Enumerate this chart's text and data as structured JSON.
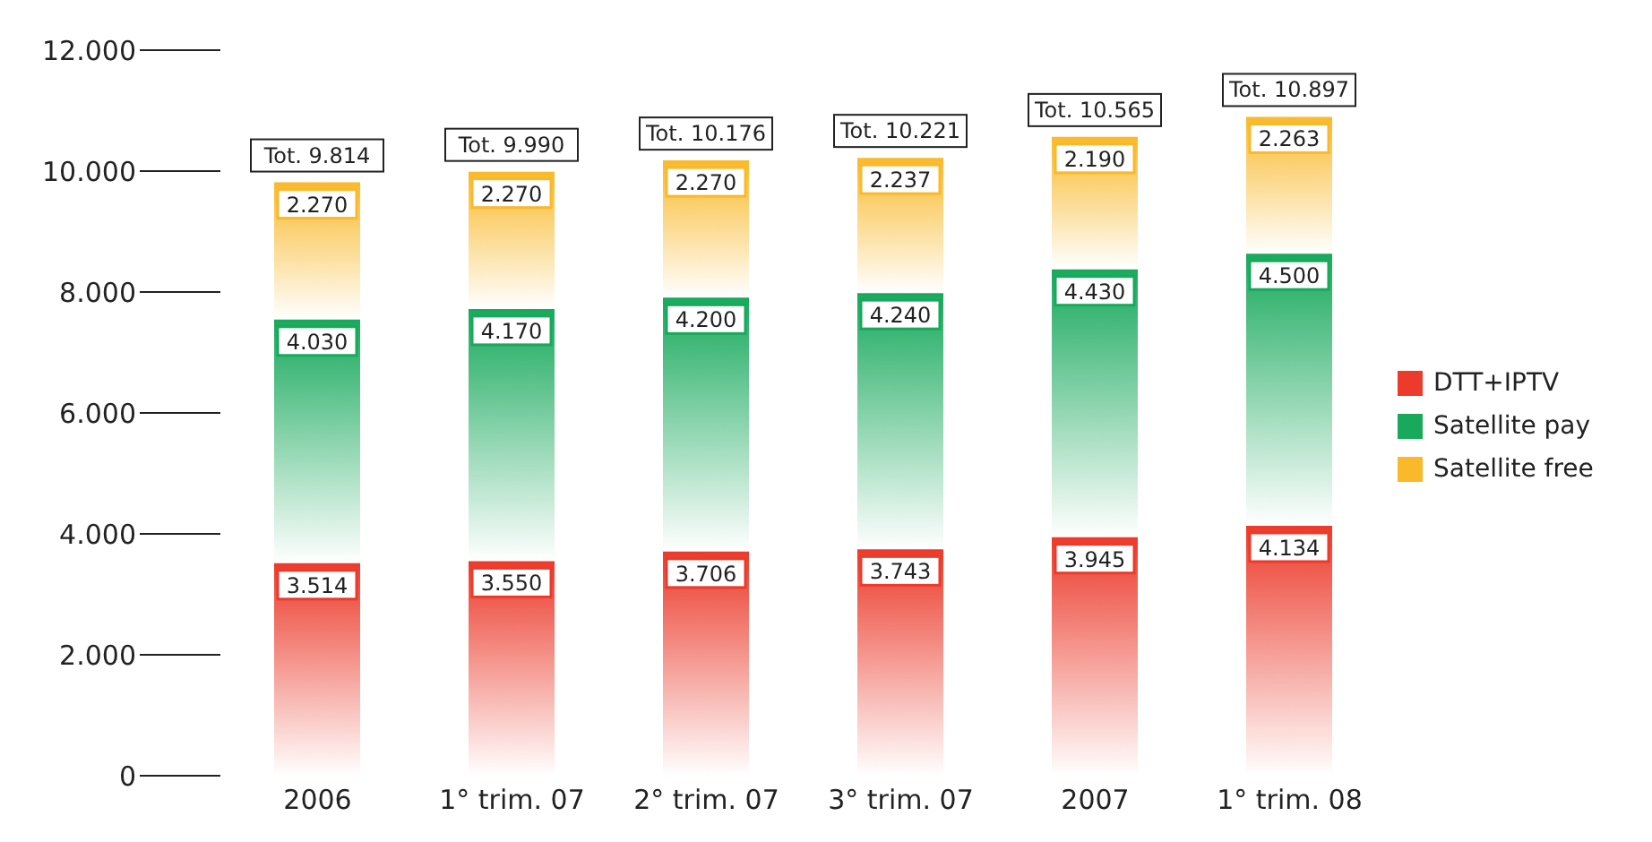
{
  "chart_data": {
    "type": "bar",
    "stacked": true,
    "categories": [
      "2006",
      "1° trim. 07",
      "2° trim. 07",
      "3° trim. 07",
      "2007",
      "1° trim. 08"
    ],
    "series": [
      {
        "name": "DTT+IPTV",
        "color": "#ec3a2b",
        "values": [
          3514,
          3550,
          3706,
          3743,
          3945,
          4134
        ],
        "value_labels": [
          "3.514",
          "3.550",
          "3.706",
          "3.743",
          "3.945",
          "4.134"
        ]
      },
      {
        "name": "Satellite pay",
        "color": "#18a95c",
        "values": [
          4030,
          4170,
          4200,
          4240,
          4430,
          4500
        ],
        "value_labels": [
          "4.030",
          "4.170",
          "4.200",
          "4.240",
          "4.430",
          "4.500"
        ]
      },
      {
        "name": "Satellite free",
        "color": "#f9b92a",
        "values": [
          2270,
          2270,
          2270,
          2237,
          2190,
          2263
        ],
        "value_labels": [
          "2.270",
          "2.270",
          "2.270",
          "2.237",
          "2.190",
          "2.263"
        ]
      }
    ],
    "totals": [
      "Tot. 9.814",
      "Tot. 9.990",
      "Tot. 10.176",
      "Tot. 10.221",
      "Tot. 10.565",
      "Tot. 10.897"
    ],
    "ylim": [
      0,
      12000
    ],
    "yticks": [
      {
        "value": 0,
        "label": "0"
      },
      {
        "value": 2000,
        "label": "2.000"
      },
      {
        "value": 4000,
        "label": "4.000"
      },
      {
        "value": 6000,
        "label": "6.000"
      },
      {
        "value": 8000,
        "label": "8.000"
      },
      {
        "value": 10000,
        "label": "10.000"
      },
      {
        "value": 12000,
        "label": "12.000"
      }
    ],
    "legend": "right",
    "grid": false
  }
}
